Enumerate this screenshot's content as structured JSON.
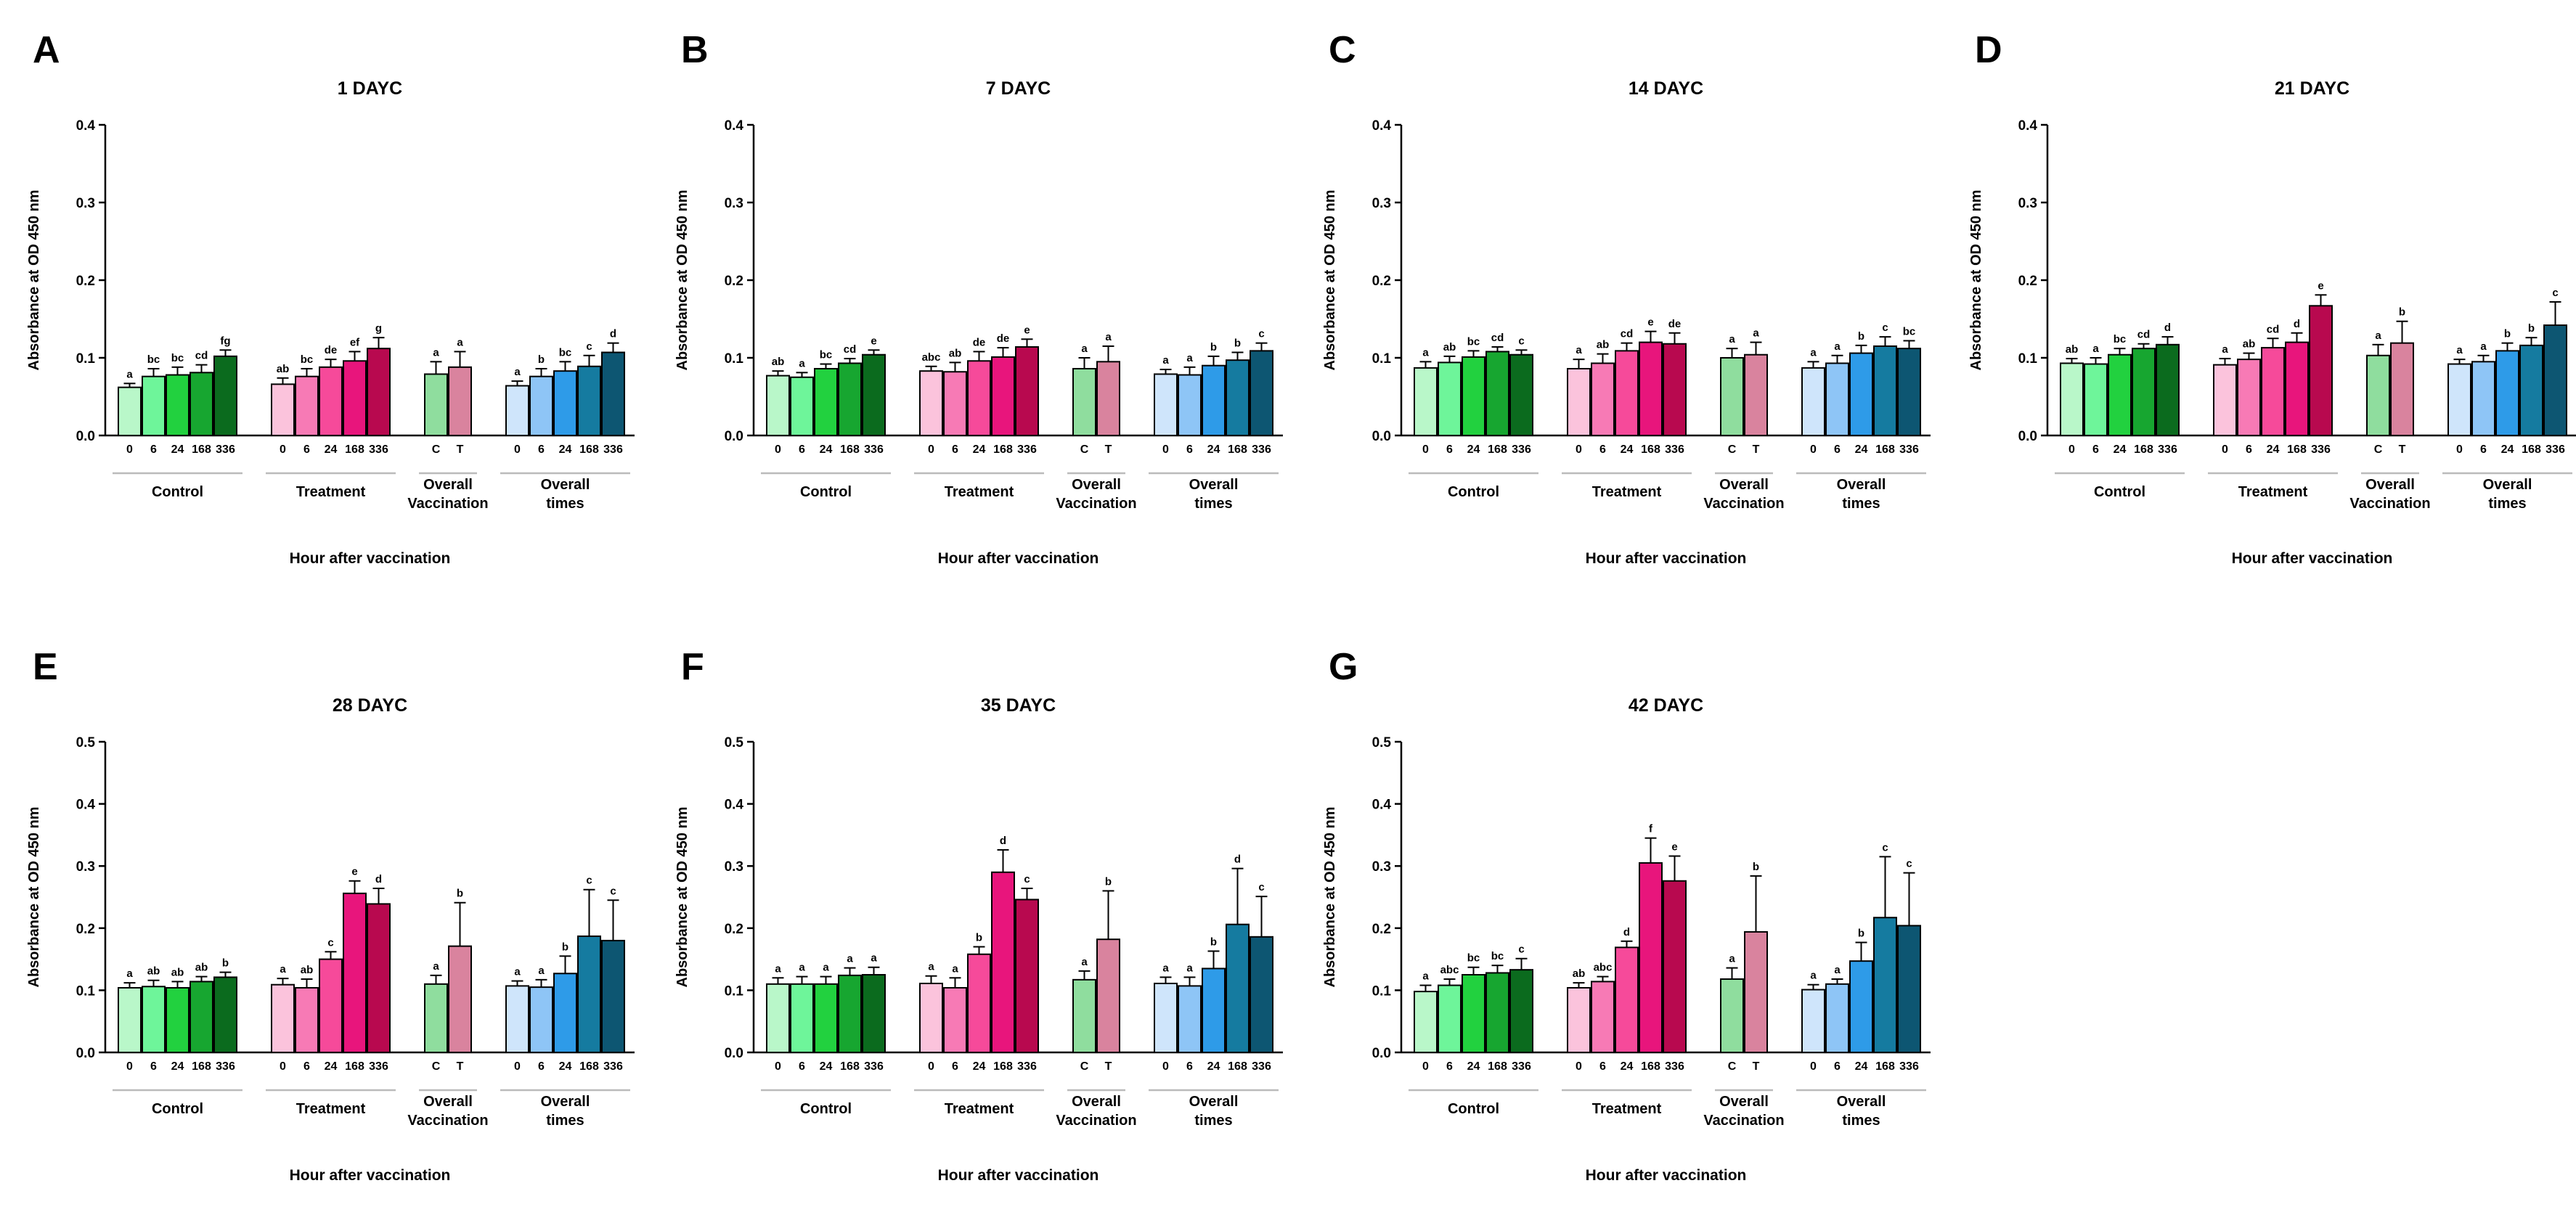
{
  "figure": {
    "group_labels": [
      [
        "Control"
      ],
      [
        "Treatment"
      ],
      [
        "Overall",
        "Vaccination"
      ],
      [
        "Overall",
        "times"
      ]
    ],
    "x_axis_title": "Hour after vaccination",
    "y_axis_title": "Absorbance at OD 450 nm",
    "hour_ticks": [
      "0",
      "6",
      "24",
      "168",
      "336"
    ],
    "vaccination_ticks": [
      "C",
      "T"
    ],
    "colors": {
      "control": [
        "#b9f7c9",
        "#6ef59a",
        "#22d13f",
        "#17a630",
        "#0b6b1e"
      ],
      "treatment": [
        "#fbc3dc",
        "#f77ab5",
        "#f64a9a",
        "#e8157c",
        "#b8094f"
      ],
      "vaccination": [
        "#8fdd9e",
        "#d9839e"
      ],
      "overall_times": [
        "#cfe5fb",
        "#8ec5f6",
        "#2e9be8",
        "#157ba0",
        "#0d5672"
      ],
      "axis": "#000000",
      "group_line": "#bbbbbb"
    }
  },
  "chart_data": [
    {
      "panel": "A",
      "type": "bar",
      "title": "1 DAYC",
      "ylim": [
        0,
        0.4
      ],
      "yticks": [
        "0.0",
        "0.1",
        "0.2",
        "0.3",
        "0.4"
      ],
      "groups": [
        {
          "name": "Control",
          "categories": [
            "0",
            "6",
            "24",
            "168",
            "336"
          ],
          "values": [
            0.062,
            0.076,
            0.078,
            0.081,
            0.102
          ],
          "errors": [
            0.005,
            0.01,
            0.01,
            0.01,
            0.008
          ],
          "letters": [
            "a",
            "bc",
            "bc",
            "cd",
            "fg"
          ]
        },
        {
          "name": "Treatment",
          "categories": [
            "0",
            "6",
            "24",
            "168",
            "336"
          ],
          "values": [
            0.066,
            0.076,
            0.088,
            0.096,
            0.112
          ],
          "errors": [
            0.008,
            0.01,
            0.01,
            0.012,
            0.014
          ],
          "letters": [
            "ab",
            "bc",
            "de",
            "ef",
            "g"
          ]
        },
        {
          "name": "Overall Vaccination",
          "categories": [
            "C",
            "T"
          ],
          "values": [
            0.079,
            0.088
          ],
          "errors": [
            0.016,
            0.02
          ],
          "letters": [
            "a",
            "a"
          ]
        },
        {
          "name": "Overall times",
          "categories": [
            "0",
            "6",
            "24",
            "168",
            "336"
          ],
          "values": [
            0.064,
            0.076,
            0.083,
            0.089,
            0.107
          ],
          "errors": [
            0.006,
            0.01,
            0.012,
            0.014,
            0.012
          ],
          "letters": [
            "a",
            "b",
            "bc",
            "c",
            "d"
          ]
        }
      ]
    },
    {
      "panel": "B",
      "type": "bar",
      "title": "7 DAYC",
      "ylim": [
        0,
        0.4
      ],
      "yticks": [
        "0.0",
        "0.1",
        "0.2",
        "0.3",
        "0.4"
      ],
      "groups": [
        {
          "name": "Control",
          "categories": [
            "0",
            "6",
            "24",
            "168",
            "336"
          ],
          "values": [
            0.077,
            0.075,
            0.086,
            0.093,
            0.104
          ],
          "errors": [
            0.006,
            0.006,
            0.006,
            0.006,
            0.006
          ],
          "letters": [
            "ab",
            "a",
            "bc",
            "cd",
            "e"
          ]
        },
        {
          "name": "Treatment",
          "categories": [
            "0",
            "6",
            "24",
            "168",
            "336"
          ],
          "values": [
            0.083,
            0.082,
            0.096,
            0.101,
            0.114
          ],
          "errors": [
            0.006,
            0.012,
            0.012,
            0.012,
            0.01
          ],
          "letters": [
            "abc",
            "ab",
            "de",
            "de",
            "e"
          ]
        },
        {
          "name": "Overall Vaccination",
          "categories": [
            "C",
            "T"
          ],
          "values": [
            0.086,
            0.095
          ],
          "errors": [
            0.014,
            0.02
          ],
          "letters": [
            "a",
            "a"
          ]
        },
        {
          "name": "Overall times",
          "categories": [
            "0",
            "6",
            "24",
            "168",
            "336"
          ],
          "values": [
            0.079,
            0.078,
            0.09,
            0.097,
            0.109
          ],
          "errors": [
            0.006,
            0.01,
            0.012,
            0.01,
            0.01
          ],
          "letters": [
            "a",
            "a",
            "b",
            "b",
            "c"
          ]
        }
      ]
    },
    {
      "panel": "C",
      "type": "bar",
      "title": "14 DAYC",
      "ylim": [
        0,
        0.4
      ],
      "yticks": [
        "0.0",
        "0.1",
        "0.2",
        "0.3",
        "0.4"
      ],
      "groups": [
        {
          "name": "Control",
          "categories": [
            "0",
            "6",
            "24",
            "168",
            "336"
          ],
          "values": [
            0.087,
            0.094,
            0.101,
            0.108,
            0.104
          ],
          "errors": [
            0.008,
            0.008,
            0.008,
            0.006,
            0.006
          ],
          "letters": [
            "a",
            "ab",
            "bc",
            "cd",
            "c"
          ]
        },
        {
          "name": "Treatment",
          "categories": [
            "0",
            "6",
            "24",
            "168",
            "336"
          ],
          "values": [
            0.086,
            0.093,
            0.109,
            0.12,
            0.118
          ],
          "errors": [
            0.012,
            0.012,
            0.01,
            0.014,
            0.014
          ],
          "letters": [
            "a",
            "ab",
            "cd",
            "e",
            "de"
          ]
        },
        {
          "name": "Overall Vaccination",
          "categories": [
            "C",
            "T"
          ],
          "values": [
            0.1,
            0.104
          ],
          "errors": [
            0.012,
            0.016
          ],
          "letters": [
            "a",
            "a"
          ]
        },
        {
          "name": "Overall times",
          "categories": [
            "0",
            "6",
            "24",
            "168",
            "336"
          ],
          "values": [
            0.087,
            0.093,
            0.106,
            0.115,
            0.112
          ],
          "errors": [
            0.008,
            0.01,
            0.01,
            0.012,
            0.01
          ],
          "letters": [
            "a",
            "a",
            "b",
            "c",
            "bc"
          ]
        }
      ]
    },
    {
      "panel": "D",
      "type": "bar",
      "title": "21 DAYC",
      "ylim": [
        0,
        0.4
      ],
      "yticks": [
        "0.0",
        "0.1",
        "0.2",
        "0.3",
        "0.4"
      ],
      "groups": [
        {
          "name": "Control",
          "categories": [
            "0",
            "6",
            "24",
            "168",
            "336"
          ],
          "values": [
            0.093,
            0.092,
            0.104,
            0.112,
            0.117
          ],
          "errors": [
            0.006,
            0.008,
            0.008,
            0.006,
            0.01
          ],
          "letters": [
            "ab",
            "a",
            "bc",
            "cd",
            "d"
          ]
        },
        {
          "name": "Treatment",
          "categories": [
            "0",
            "6",
            "24",
            "168",
            "336"
          ],
          "values": [
            0.091,
            0.098,
            0.113,
            0.12,
            0.167
          ],
          "errors": [
            0.008,
            0.008,
            0.012,
            0.012,
            0.014
          ],
          "letters": [
            "a",
            "ab",
            "cd",
            "d",
            "e"
          ]
        },
        {
          "name": "Overall Vaccination",
          "categories": [
            "C",
            "T"
          ],
          "values": [
            0.103,
            0.119
          ],
          "errors": [
            0.014,
            0.028
          ],
          "letters": [
            "a",
            "b"
          ]
        },
        {
          "name": "Overall times",
          "categories": [
            "0",
            "6",
            "24",
            "168",
            "336"
          ],
          "values": [
            0.092,
            0.095,
            0.109,
            0.116,
            0.142
          ],
          "errors": [
            0.006,
            0.008,
            0.01,
            0.01,
            0.03
          ],
          "letters": [
            "a",
            "a",
            "b",
            "b",
            "c"
          ]
        }
      ]
    },
    {
      "panel": "E",
      "type": "bar",
      "title": "28 DAYC",
      "ylim": [
        0,
        0.5
      ],
      "yticks": [
        "0.0",
        "0.1",
        "0.2",
        "0.3",
        "0.4",
        "0.5"
      ],
      "groups": [
        {
          "name": "Control",
          "categories": [
            "0",
            "6",
            "24",
            "168",
            "336"
          ],
          "values": [
            0.104,
            0.106,
            0.104,
            0.114,
            0.121
          ],
          "errors": [
            0.008,
            0.01,
            0.01,
            0.008,
            0.008
          ],
          "letters": [
            "a",
            "ab",
            "ab",
            "ab",
            "b"
          ]
        },
        {
          "name": "Treatment",
          "categories": [
            "0",
            "6",
            "24",
            "168",
            "336"
          ],
          "values": [
            0.109,
            0.104,
            0.15,
            0.256,
            0.239
          ],
          "errors": [
            0.01,
            0.014,
            0.012,
            0.02,
            0.025
          ],
          "letters": [
            "a",
            "ab",
            "c",
            "e",
            "d"
          ]
        },
        {
          "name": "Overall Vaccination",
          "categories": [
            "C",
            "T"
          ],
          "values": [
            0.11,
            0.171
          ],
          "errors": [
            0.014,
            0.07
          ],
          "letters": [
            "a",
            "b"
          ]
        },
        {
          "name": "Overall times",
          "categories": [
            "0",
            "6",
            "24",
            "168",
            "336"
          ],
          "values": [
            0.107,
            0.105,
            0.127,
            0.187,
            0.18
          ],
          "errors": [
            0.008,
            0.012,
            0.028,
            0.075,
            0.065
          ],
          "letters": [
            "a",
            "a",
            "b",
            "c",
            "c"
          ]
        }
      ]
    },
    {
      "panel": "F",
      "type": "bar",
      "title": "35 DAYC",
      "ylim": [
        0,
        0.5
      ],
      "yticks": [
        "0.0",
        "0.1",
        "0.2",
        "0.3",
        "0.4",
        "0.5"
      ],
      "groups": [
        {
          "name": "Control",
          "categories": [
            "0",
            "6",
            "24",
            "168",
            "336"
          ],
          "values": [
            0.11,
            0.11,
            0.11,
            0.124,
            0.125
          ],
          "errors": [
            0.01,
            0.012,
            0.012,
            0.012,
            0.012
          ],
          "letters": [
            "a",
            "a",
            "a",
            "a",
            "a"
          ]
        },
        {
          "name": "Treatment",
          "categories": [
            "0",
            "6",
            "24",
            "168",
            "336"
          ],
          "values": [
            0.111,
            0.104,
            0.158,
            0.29,
            0.246
          ],
          "errors": [
            0.012,
            0.016,
            0.012,
            0.036,
            0.018
          ],
          "letters": [
            "a",
            "a",
            "b",
            "d",
            "c"
          ]
        },
        {
          "name": "Overall Vaccination",
          "categories": [
            "C",
            "T"
          ],
          "values": [
            0.117,
            0.182
          ],
          "errors": [
            0.014,
            0.078
          ],
          "letters": [
            "a",
            "b"
          ]
        },
        {
          "name": "Overall times",
          "categories": [
            "0",
            "6",
            "24",
            "168",
            "336"
          ],
          "values": [
            0.111,
            0.107,
            0.135,
            0.206,
            0.186
          ],
          "errors": [
            0.01,
            0.014,
            0.028,
            0.09,
            0.065
          ],
          "letters": [
            "a",
            "a",
            "b",
            "d",
            "c"
          ]
        }
      ]
    },
    {
      "panel": "G",
      "type": "bar",
      "title": "42 DAYC",
      "ylim": [
        0,
        0.5
      ],
      "yticks": [
        "0.0",
        "0.1",
        "0.2",
        "0.3",
        "0.4",
        "0.5"
      ],
      "groups": [
        {
          "name": "Control",
          "categories": [
            "0",
            "6",
            "24",
            "168",
            "336"
          ],
          "values": [
            0.098,
            0.108,
            0.125,
            0.128,
            0.133
          ],
          "errors": [
            0.01,
            0.01,
            0.012,
            0.012,
            0.018
          ],
          "letters": [
            "a",
            "abc",
            "bc",
            "bc",
            "c"
          ]
        },
        {
          "name": "Treatment",
          "categories": [
            "0",
            "6",
            "24",
            "168",
            "336"
          ],
          "values": [
            0.104,
            0.114,
            0.169,
            0.305,
            0.276
          ],
          "errors": [
            0.008,
            0.008,
            0.01,
            0.04,
            0.04
          ],
          "letters": [
            "ab",
            "abc",
            "d",
            "f",
            "e"
          ]
        },
        {
          "name": "Overall Vaccination",
          "categories": [
            "C",
            "T"
          ],
          "values": [
            0.118,
            0.194
          ],
          "errors": [
            0.018,
            0.09
          ],
          "letters": [
            "a",
            "b"
          ]
        },
        {
          "name": "Overall times",
          "categories": [
            "0",
            "6",
            "24",
            "168",
            "336"
          ],
          "values": [
            0.101,
            0.11,
            0.147,
            0.217,
            0.204
          ],
          "errors": [
            0.008,
            0.008,
            0.03,
            0.098,
            0.085
          ],
          "letters": [
            "a",
            "a",
            "b",
            "c",
            "c"
          ]
        }
      ]
    }
  ]
}
